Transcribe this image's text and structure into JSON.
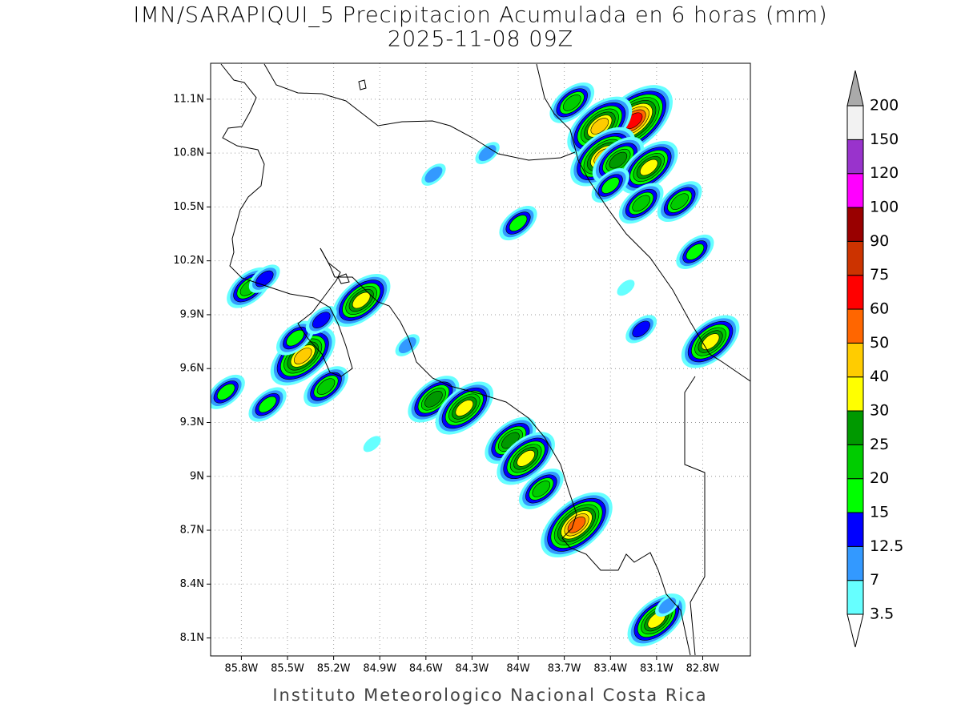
{
  "map": {
    "title": "IMN/SARAPIQUI_5 Precipitacion Acumulada en 6 horas (mm)",
    "subtitle": "2025-11-08 09Z",
    "footer": "Instituto Meteorologico Nacional Costa Rica",
    "xlim": [
      -86.0,
      -82.49
    ],
    "ylim": [
      8.0,
      11.3
    ],
    "grid": true,
    "xticks": [
      {
        "value": -85.8,
        "label": "85.8W"
      },
      {
        "value": -85.5,
        "label": "85.5W"
      },
      {
        "value": -85.2,
        "label": "85.2W"
      },
      {
        "value": -84.9,
        "label": "84.9W"
      },
      {
        "value": -84.6,
        "label": "84.6W"
      },
      {
        "value": -84.3,
        "label": "84.3W"
      },
      {
        "value": -84.0,
        "label": "84W"
      },
      {
        "value": -83.7,
        "label": "83.7W"
      },
      {
        "value": -83.4,
        "label": "83.4W"
      },
      {
        "value": -83.1,
        "label": "83.1W"
      },
      {
        "value": -82.8,
        "label": "82.8W"
      }
    ],
    "yticks": [
      {
        "value": 8.1,
        "label": "8.1N"
      },
      {
        "value": 8.4,
        "label": "8.4N"
      },
      {
        "value": 8.7,
        "label": "8.7N"
      },
      {
        "value": 9.0,
        "label": "9N"
      },
      {
        "value": 9.3,
        "label": "9.3N"
      },
      {
        "value": 9.6,
        "label": "9.6N"
      },
      {
        "value": 9.9,
        "label": "9.9N"
      },
      {
        "value": 10.2,
        "label": "10.2N"
      },
      {
        "value": 10.5,
        "label": "10.5N"
      },
      {
        "value": 10.8,
        "label": "10.8N"
      },
      {
        "value": 11.1,
        "label": "11.1N"
      }
    ],
    "colorbar": {
      "levels": [
        3.5,
        7,
        12.5,
        15,
        20,
        25,
        30,
        40,
        50,
        60,
        75,
        90,
        100,
        120,
        150,
        200
      ],
      "colors": [
        "#ffffff",
        "#66ffff",
        "#3399ff",
        "#0000ff",
        "#00ff00",
        "#00cc00",
        "#009900",
        "#ffff00",
        "#ffcc00",
        "#ff6600",
        "#ff0000",
        "#cc3300",
        "#990000",
        "#ff00ff",
        "#9933cc",
        "#f2f2f2",
        "#aaaaaa"
      ]
    },
    "cells": [
      {
        "lon": -83.25,
        "lat": 10.98,
        "max": 60
      },
      {
        "lon": -83.47,
        "lat": 10.95,
        "max": 40
      },
      {
        "lon": -83.45,
        "lat": 10.78,
        "max": 40
      },
      {
        "lon": -83.35,
        "lat": 10.76,
        "max": 25
      },
      {
        "lon": -83.15,
        "lat": 10.72,
        "max": 30
      },
      {
        "lon": -83.4,
        "lat": 10.62,
        "max": 15
      },
      {
        "lon": -83.2,
        "lat": 10.52,
        "max": 20
      },
      {
        "lon": -82.95,
        "lat": 10.53,
        "max": 20
      },
      {
        "lon": -82.85,
        "lat": 10.25,
        "max": 15
      },
      {
        "lon": -82.75,
        "lat": 9.75,
        "max": 30
      },
      {
        "lon": -83.65,
        "lat": 11.08,
        "max": 20
      },
      {
        "lon": -84.0,
        "lat": 10.41,
        "max": 15
      },
      {
        "lon": -84.55,
        "lat": 10.68,
        "max": 7
      },
      {
        "lon": -84.2,
        "lat": 10.8,
        "max": 7
      },
      {
        "lon": -85.4,
        "lat": 9.67,
        "max": 40
      },
      {
        "lon": -85.45,
        "lat": 9.77,
        "max": 15
      },
      {
        "lon": -85.02,
        "lat": 9.98,
        "max": 30
      },
      {
        "lon": -85.75,
        "lat": 10.05,
        "max": 20
      },
      {
        "lon": -85.65,
        "lat": 10.1,
        "max": 12.5
      },
      {
        "lon": -85.28,
        "lat": 9.87,
        "max": 12.5
      },
      {
        "lon": -84.55,
        "lat": 9.43,
        "max": 25
      },
      {
        "lon": -84.35,
        "lat": 9.38,
        "max": 30
      },
      {
        "lon": -84.05,
        "lat": 9.2,
        "max": 25
      },
      {
        "lon": -83.95,
        "lat": 9.1,
        "max": 30
      },
      {
        "lon": -83.62,
        "lat": 8.73,
        "max": 50
      },
      {
        "lon": -83.85,
        "lat": 8.93,
        "max": 20
      },
      {
        "lon": -83.1,
        "lat": 8.2,
        "max": 30
      },
      {
        "lon": -85.9,
        "lat": 9.47,
        "max": 15
      },
      {
        "lon": -85.63,
        "lat": 9.4,
        "max": 15
      },
      {
        "lon": -85.25,
        "lat": 9.5,
        "max": 20
      },
      {
        "lon": -84.95,
        "lat": 9.18,
        "max": 3.5
      },
      {
        "lon": -84.72,
        "lat": 9.73,
        "max": 7
      },
      {
        "lon": -83.3,
        "lat": 10.05,
        "max": 3.5
      },
      {
        "lon": -83.2,
        "lat": 9.82,
        "max": 12.5
      },
      {
        "lon": -83.03,
        "lat": 8.28,
        "max": 7
      }
    ]
  }
}
